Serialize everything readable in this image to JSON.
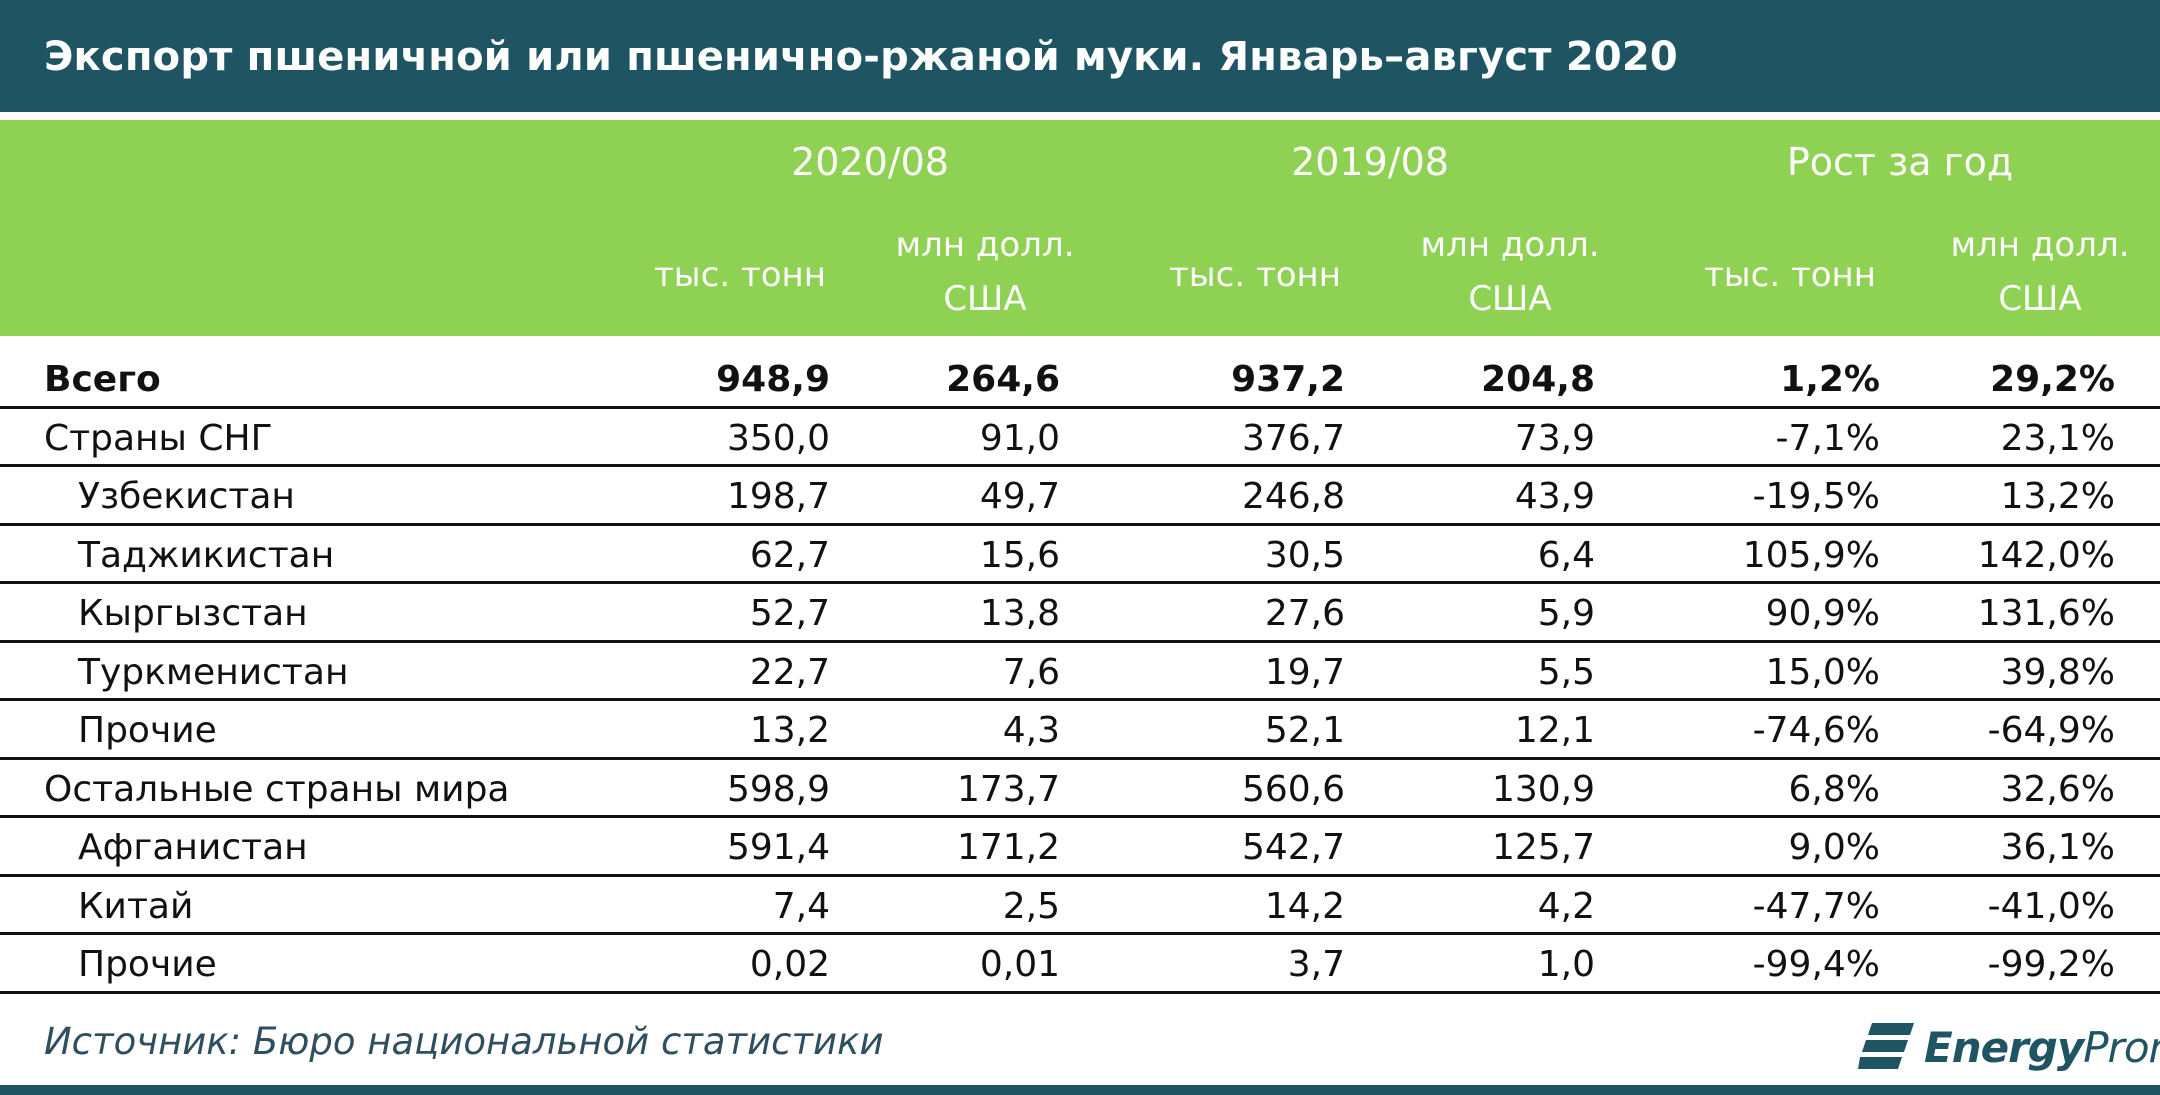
{
  "title": "Экспорт пшеничной или пшенично-ржаной муки. Январь–август 2020",
  "chart_data": {
    "type": "table",
    "title": "Экспорт пшеничной или пшенично-ржаной муки. Январь–август 2020",
    "column_groups": [
      "2020/08",
      "2019/08",
      "Рост за год"
    ],
    "units": [
      "тыс. тонн",
      "млн долл.",
      "США"
    ],
    "rows": [
      {
        "name": "Всего",
        "level": 0,
        "bold": true,
        "values": [
          "948,9",
          "264,6",
          "937,2",
          "204,8",
          "1,2%",
          "29,2%"
        ]
      },
      {
        "name": "Страны СНГ",
        "level": 0,
        "bold": false,
        "values": [
          "350,0",
          "91,0",
          "376,7",
          "73,9",
          "-7,1%",
          "23,1%"
        ]
      },
      {
        "name": "Узбекистан",
        "level": 1,
        "bold": false,
        "values": [
          "198,7",
          "49,7",
          "246,8",
          "43,9",
          "-19,5%",
          "13,2%"
        ]
      },
      {
        "name": "Таджикистан",
        "level": 1,
        "bold": false,
        "values": [
          "62,7",
          "15,6",
          "30,5",
          "6,4",
          "105,9%",
          "142,0%"
        ]
      },
      {
        "name": "Кыргызстан",
        "level": 1,
        "bold": false,
        "values": [
          "52,7",
          "13,8",
          "27,6",
          "5,9",
          "90,9%",
          "131,6%"
        ]
      },
      {
        "name": "Туркменистан",
        "level": 1,
        "bold": false,
        "values": [
          "22,7",
          "7,6",
          "19,7",
          "5,5",
          "15,0%",
          "39,8%"
        ]
      },
      {
        "name": "Прочие",
        "level": 1,
        "bold": false,
        "values": [
          "13,2",
          "4,3",
          "52,1",
          "12,1",
          "-74,6%",
          "-64,9%"
        ]
      },
      {
        "name": "Остальные страны мира",
        "level": 0,
        "bold": false,
        "values": [
          "598,9",
          "173,7",
          "560,6",
          "130,9",
          "6,8%",
          "32,6%"
        ]
      },
      {
        "name": "Афганистан",
        "level": 1,
        "bold": false,
        "values": [
          "591,4",
          "171,2",
          "542,7",
          "125,7",
          "9,0%",
          "36,1%"
        ]
      },
      {
        "name": "Китай",
        "level": 1,
        "bold": false,
        "values": [
          "7,4",
          "2,5",
          "14,2",
          "4,2",
          "-47,7%",
          "-41,0%"
        ]
      },
      {
        "name": "Прочие",
        "level": 1,
        "bold": false,
        "values": [
          "0,02",
          "0,01",
          "3,7",
          "1,0",
          "-99,4%",
          "-99,2%"
        ]
      }
    ]
  },
  "source": "Источник: Бюро национальной статистики",
  "logo": {
    "bold": "Energy",
    "light": "Prom"
  },
  "colors": {
    "title_bar": "#1f5563",
    "header": "#8fd153",
    "text": "#111111",
    "source": "#2f4f5f"
  }
}
